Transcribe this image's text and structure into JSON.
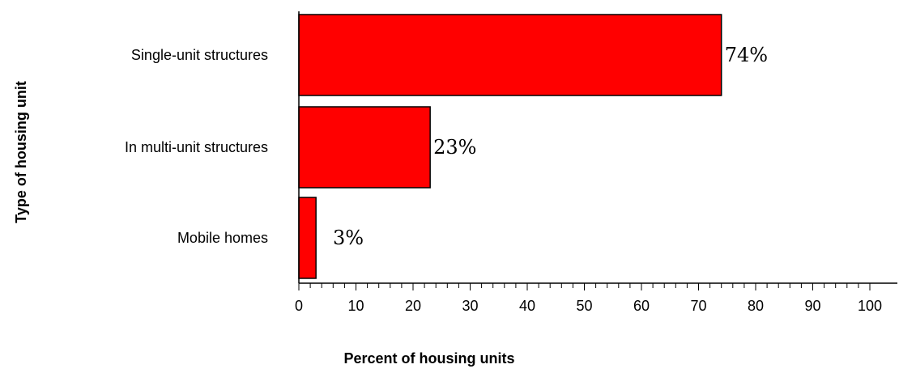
{
  "chart_data": {
    "type": "bar",
    "orientation": "horizontal",
    "title": "",
    "xlabel": "Percent of housing units",
    "ylabel": "Type of housing unit",
    "categories": [
      "Single-unit structures",
      "In multi-unit structures",
      "Mobile homes"
    ],
    "values": [
      74,
      23,
      3
    ],
    "data_labels": [
      "74%",
      "23%",
      "3%"
    ],
    "xlim": [
      0,
      100
    ],
    "x_ticks": [
      0,
      10,
      20,
      30,
      40,
      50,
      60,
      70,
      80,
      90,
      100
    ],
    "x_tick_labels": [
      "0",
      "10",
      "20",
      "30",
      "40",
      "50",
      "60",
      "70",
      "80",
      "90",
      "100"
    ],
    "grid": false,
    "legend": "none",
    "bar_color": "#ff0000"
  }
}
